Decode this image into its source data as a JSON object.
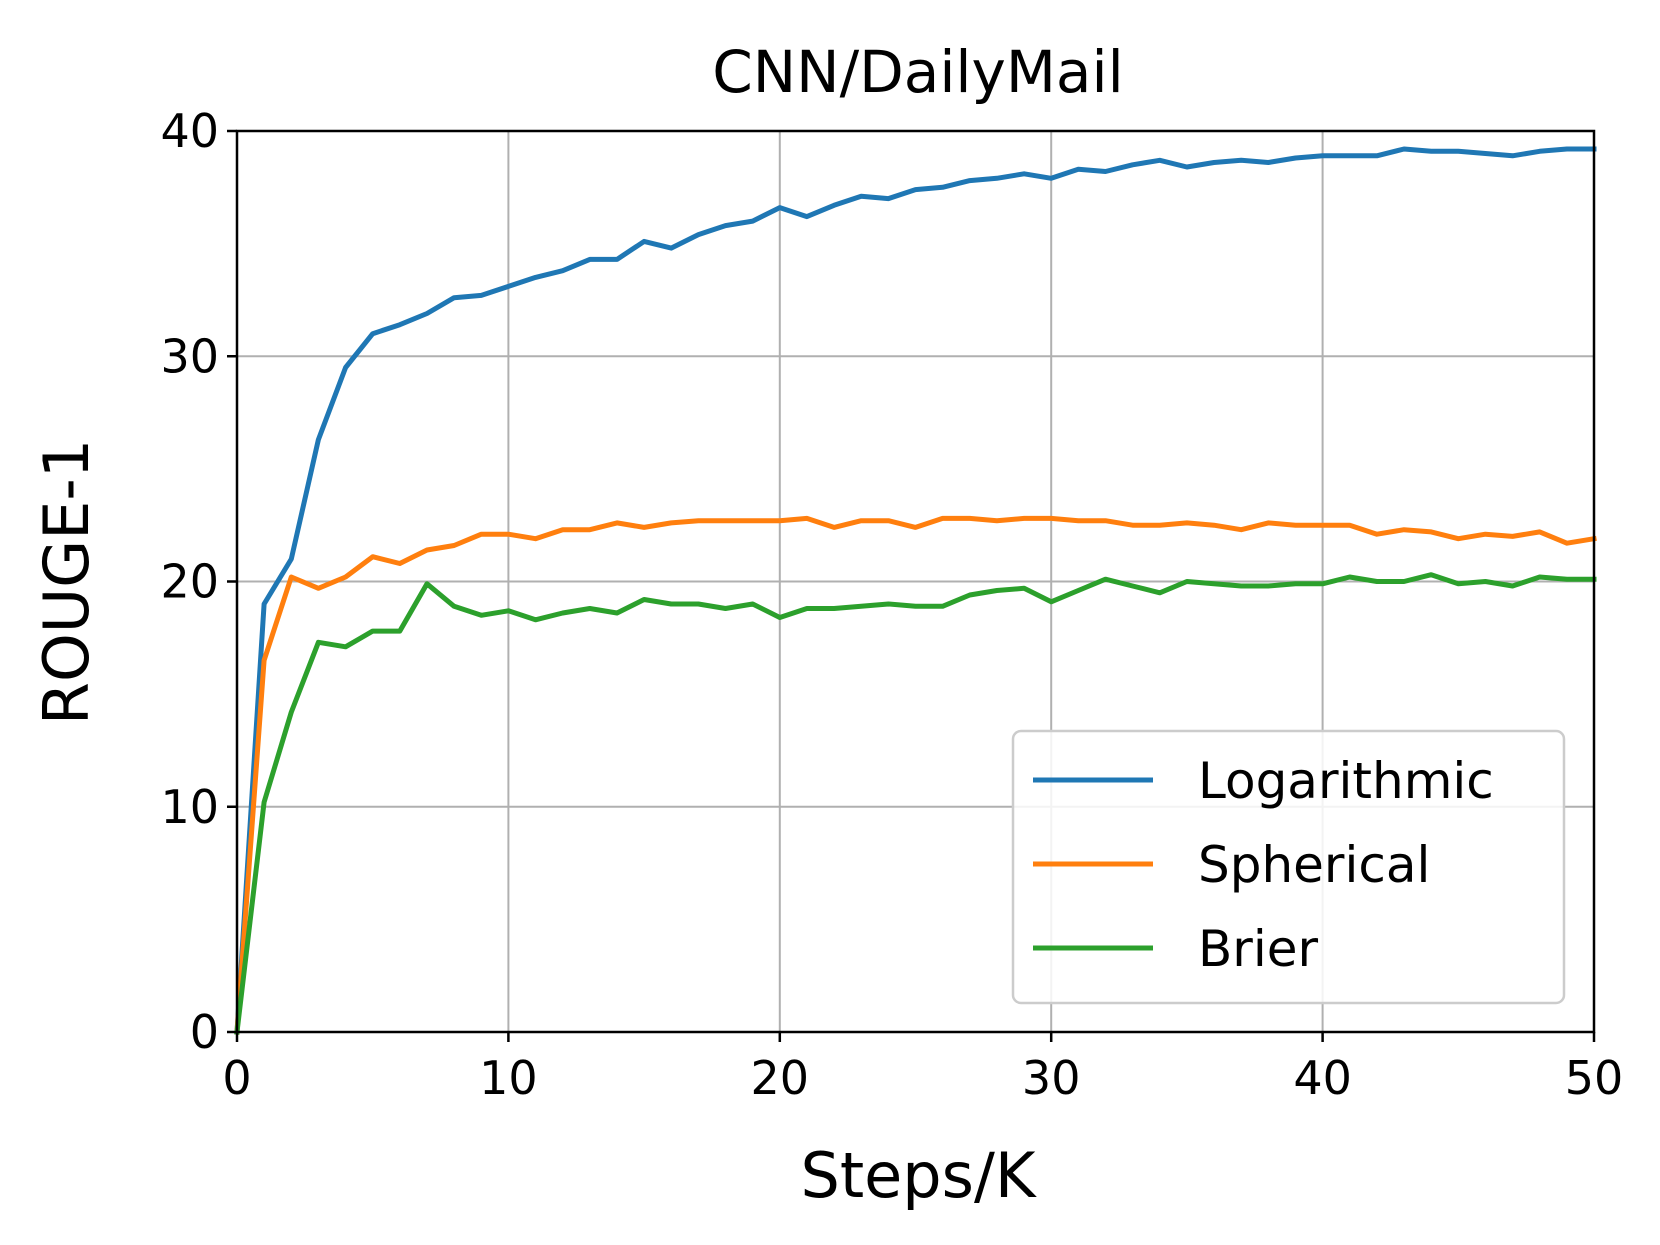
{
  "chart_data": {
    "type": "line",
    "title": "CNN/DailyMail",
    "xlabel": "Steps/K",
    "ylabel": "ROUGE-1",
    "xlim": [
      0,
      50
    ],
    "ylim": [
      0,
      40
    ],
    "xticks": [
      0,
      10,
      20,
      30,
      40,
      50
    ],
    "yticks": [
      0,
      10,
      20,
      30,
      40
    ],
    "grid": true,
    "legend_position": "lower right",
    "x": [
      0,
      1,
      2,
      3,
      4,
      5,
      6,
      7,
      8,
      9,
      10,
      11,
      12,
      13,
      14,
      15,
      16,
      17,
      18,
      19,
      20,
      21,
      22,
      23,
      24,
      25,
      26,
      27,
      28,
      29,
      30,
      31,
      32,
      33,
      34,
      35,
      36,
      37,
      38,
      39,
      40,
      41,
      42,
      43,
      44,
      45,
      46,
      47,
      48,
      49,
      50
    ],
    "series": [
      {
        "name": "Logarithmic",
        "color": "#1f77b4",
        "values": [
          0,
          19.0,
          21.0,
          26.3,
          29.5,
          31.0,
          31.4,
          31.9,
          32.6,
          32.7,
          33.1,
          33.5,
          33.8,
          34.3,
          34.3,
          35.1,
          34.8,
          35.4,
          35.8,
          36.0,
          36.6,
          36.2,
          36.7,
          37.1,
          37.0,
          37.4,
          37.5,
          37.8,
          37.9,
          38.1,
          37.9,
          38.3,
          38.2,
          38.5,
          38.7,
          38.4,
          38.6,
          38.7,
          38.6,
          38.8,
          38.9,
          38.9,
          38.9,
          39.2,
          39.1,
          39.1,
          39.0,
          38.9,
          39.1,
          39.2,
          39.2
        ]
      },
      {
        "name": "Spherical",
        "color": "#ff7f0e",
        "values": [
          0,
          16.5,
          20.2,
          19.7,
          20.2,
          21.1,
          20.8,
          21.4,
          21.6,
          22.1,
          22.1,
          21.9,
          22.3,
          22.3,
          22.6,
          22.4,
          22.6,
          22.7,
          22.7,
          22.7,
          22.7,
          22.8,
          22.4,
          22.7,
          22.7,
          22.4,
          22.8,
          22.8,
          22.7,
          22.8,
          22.8,
          22.7,
          22.7,
          22.5,
          22.5,
          22.6,
          22.5,
          22.3,
          22.6,
          22.5,
          22.5,
          22.5,
          22.1,
          22.3,
          22.2,
          21.9,
          22.1,
          22.0,
          22.2,
          21.7,
          21.9
        ]
      },
      {
        "name": "Brier",
        "color": "#2ca02c",
        "values": [
          0,
          10.2,
          14.2,
          17.3,
          17.1,
          17.8,
          17.8,
          19.9,
          18.9,
          18.5,
          18.7,
          18.3,
          18.6,
          18.8,
          18.6,
          19.2,
          19.0,
          19.0,
          18.8,
          19.0,
          18.4,
          18.8,
          18.8,
          18.9,
          19.0,
          18.9,
          18.9,
          19.4,
          19.6,
          19.7,
          19.1,
          19.6,
          20.1,
          19.8,
          19.5,
          20.0,
          19.9,
          19.8,
          19.8,
          19.9,
          19.9,
          20.2,
          20.0,
          20.0,
          20.3,
          19.9,
          20.0,
          19.8,
          20.2,
          20.1,
          20.1
        ]
      }
    ]
  }
}
